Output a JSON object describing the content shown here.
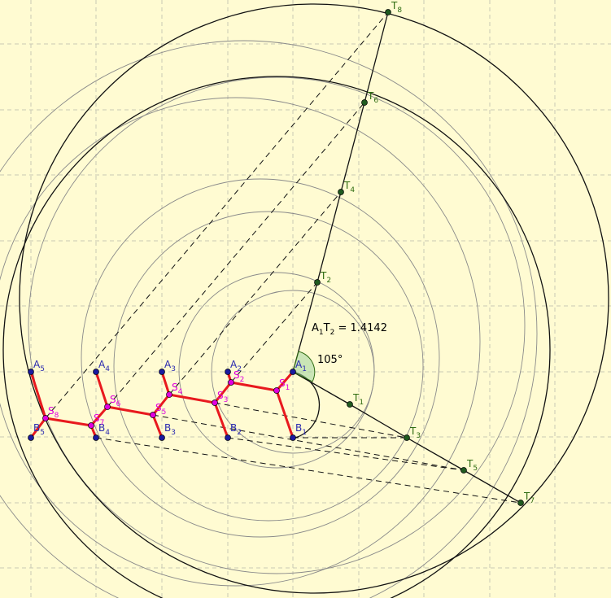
{
  "measurement": {
    "name": "A",
    "sub1": "1",
    "name2": "T",
    "sub2": "2",
    "value": " = 1.4142"
  },
  "angle_label": "105°",
  "colors": {
    "background": "#fffbd2",
    "red": "#e8191e",
    "blue": "#1a1aa0",
    "green": "#1f5a1f",
    "magenta": "#e000e0"
  },
  "a_points": [
    {
      "letter": "A",
      "sub": "1"
    },
    {
      "letter": "A",
      "sub": "2"
    },
    {
      "letter": "A",
      "sub": "3"
    },
    {
      "letter": "A",
      "sub": "4"
    },
    {
      "letter": "A",
      "sub": "5"
    }
  ],
  "b_points": [
    {
      "letter": "B",
      "sub": "1"
    },
    {
      "letter": "B",
      "sub": "2"
    },
    {
      "letter": "B",
      "sub": "3"
    },
    {
      "letter": "B",
      "sub": "4"
    },
    {
      "letter": "B",
      "sub": "5"
    }
  ],
  "t_points": [
    {
      "letter": "T",
      "sub": "1"
    },
    {
      "letter": "T",
      "sub": "2"
    },
    {
      "letter": "T",
      "sub": "3"
    },
    {
      "letter": "T",
      "sub": "4"
    },
    {
      "letter": "T",
      "sub": "5"
    },
    {
      "letter": "T",
      "sub": "6"
    },
    {
      "letter": "T",
      "sub": "7"
    },
    {
      "letter": "T",
      "sub": "8"
    }
  ],
  "s_points": [
    {
      "letter": "S",
      "sub": "1"
    },
    {
      "letter": "S",
      "sub": "2"
    },
    {
      "letter": "S",
      "sub": "3"
    },
    {
      "letter": "S",
      "sub": "4"
    },
    {
      "letter": "S",
      "sub": "5"
    },
    {
      "letter": "S",
      "sub": "6"
    },
    {
      "letter": "S",
      "sub": "7"
    },
    {
      "letter": "S",
      "sub": "8"
    }
  ]
}
